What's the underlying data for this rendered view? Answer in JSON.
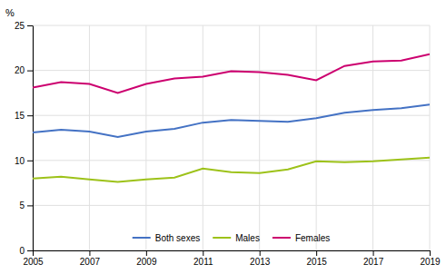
{
  "chart_data": {
    "type": "line",
    "ylabel": "%",
    "x": [
      2005,
      2006,
      2007,
      2008,
      2009,
      2010,
      2011,
      2012,
      2013,
      2014,
      2015,
      2016,
      2017,
      2018,
      2019
    ],
    "series": [
      {
        "name": "Both sexes",
        "color": "#4472C4",
        "values": [
          13.1,
          13.4,
          13.2,
          12.6,
          13.2,
          13.5,
          14.2,
          14.5,
          14.4,
          14.3,
          14.7,
          15.3,
          15.6,
          15.8,
          16.2
        ]
      },
      {
        "name": "Males",
        "color": "#9DC219",
        "values": [
          8.0,
          8.2,
          7.9,
          7.6,
          7.9,
          8.1,
          9.1,
          8.7,
          8.6,
          9.0,
          9.9,
          9.8,
          9.9,
          10.1,
          10.3
        ]
      },
      {
        "name": "Females",
        "color": "#CC006F",
        "values": [
          18.1,
          18.7,
          18.5,
          17.5,
          18.5,
          19.1,
          19.3,
          19.9,
          19.8,
          19.5,
          18.9,
          20.5,
          21.0,
          21.1,
          21.8
        ]
      }
    ],
    "xlim": [
      2005,
      2019
    ],
    "xticks": [
      2005,
      2007,
      2009,
      2011,
      2013,
      2015,
      2017,
      2019
    ],
    "ylim": [
      0,
      25
    ],
    "yticks": [
      0,
      5,
      10,
      15,
      20,
      25
    ],
    "grid": true,
    "legend": "bottom"
  }
}
